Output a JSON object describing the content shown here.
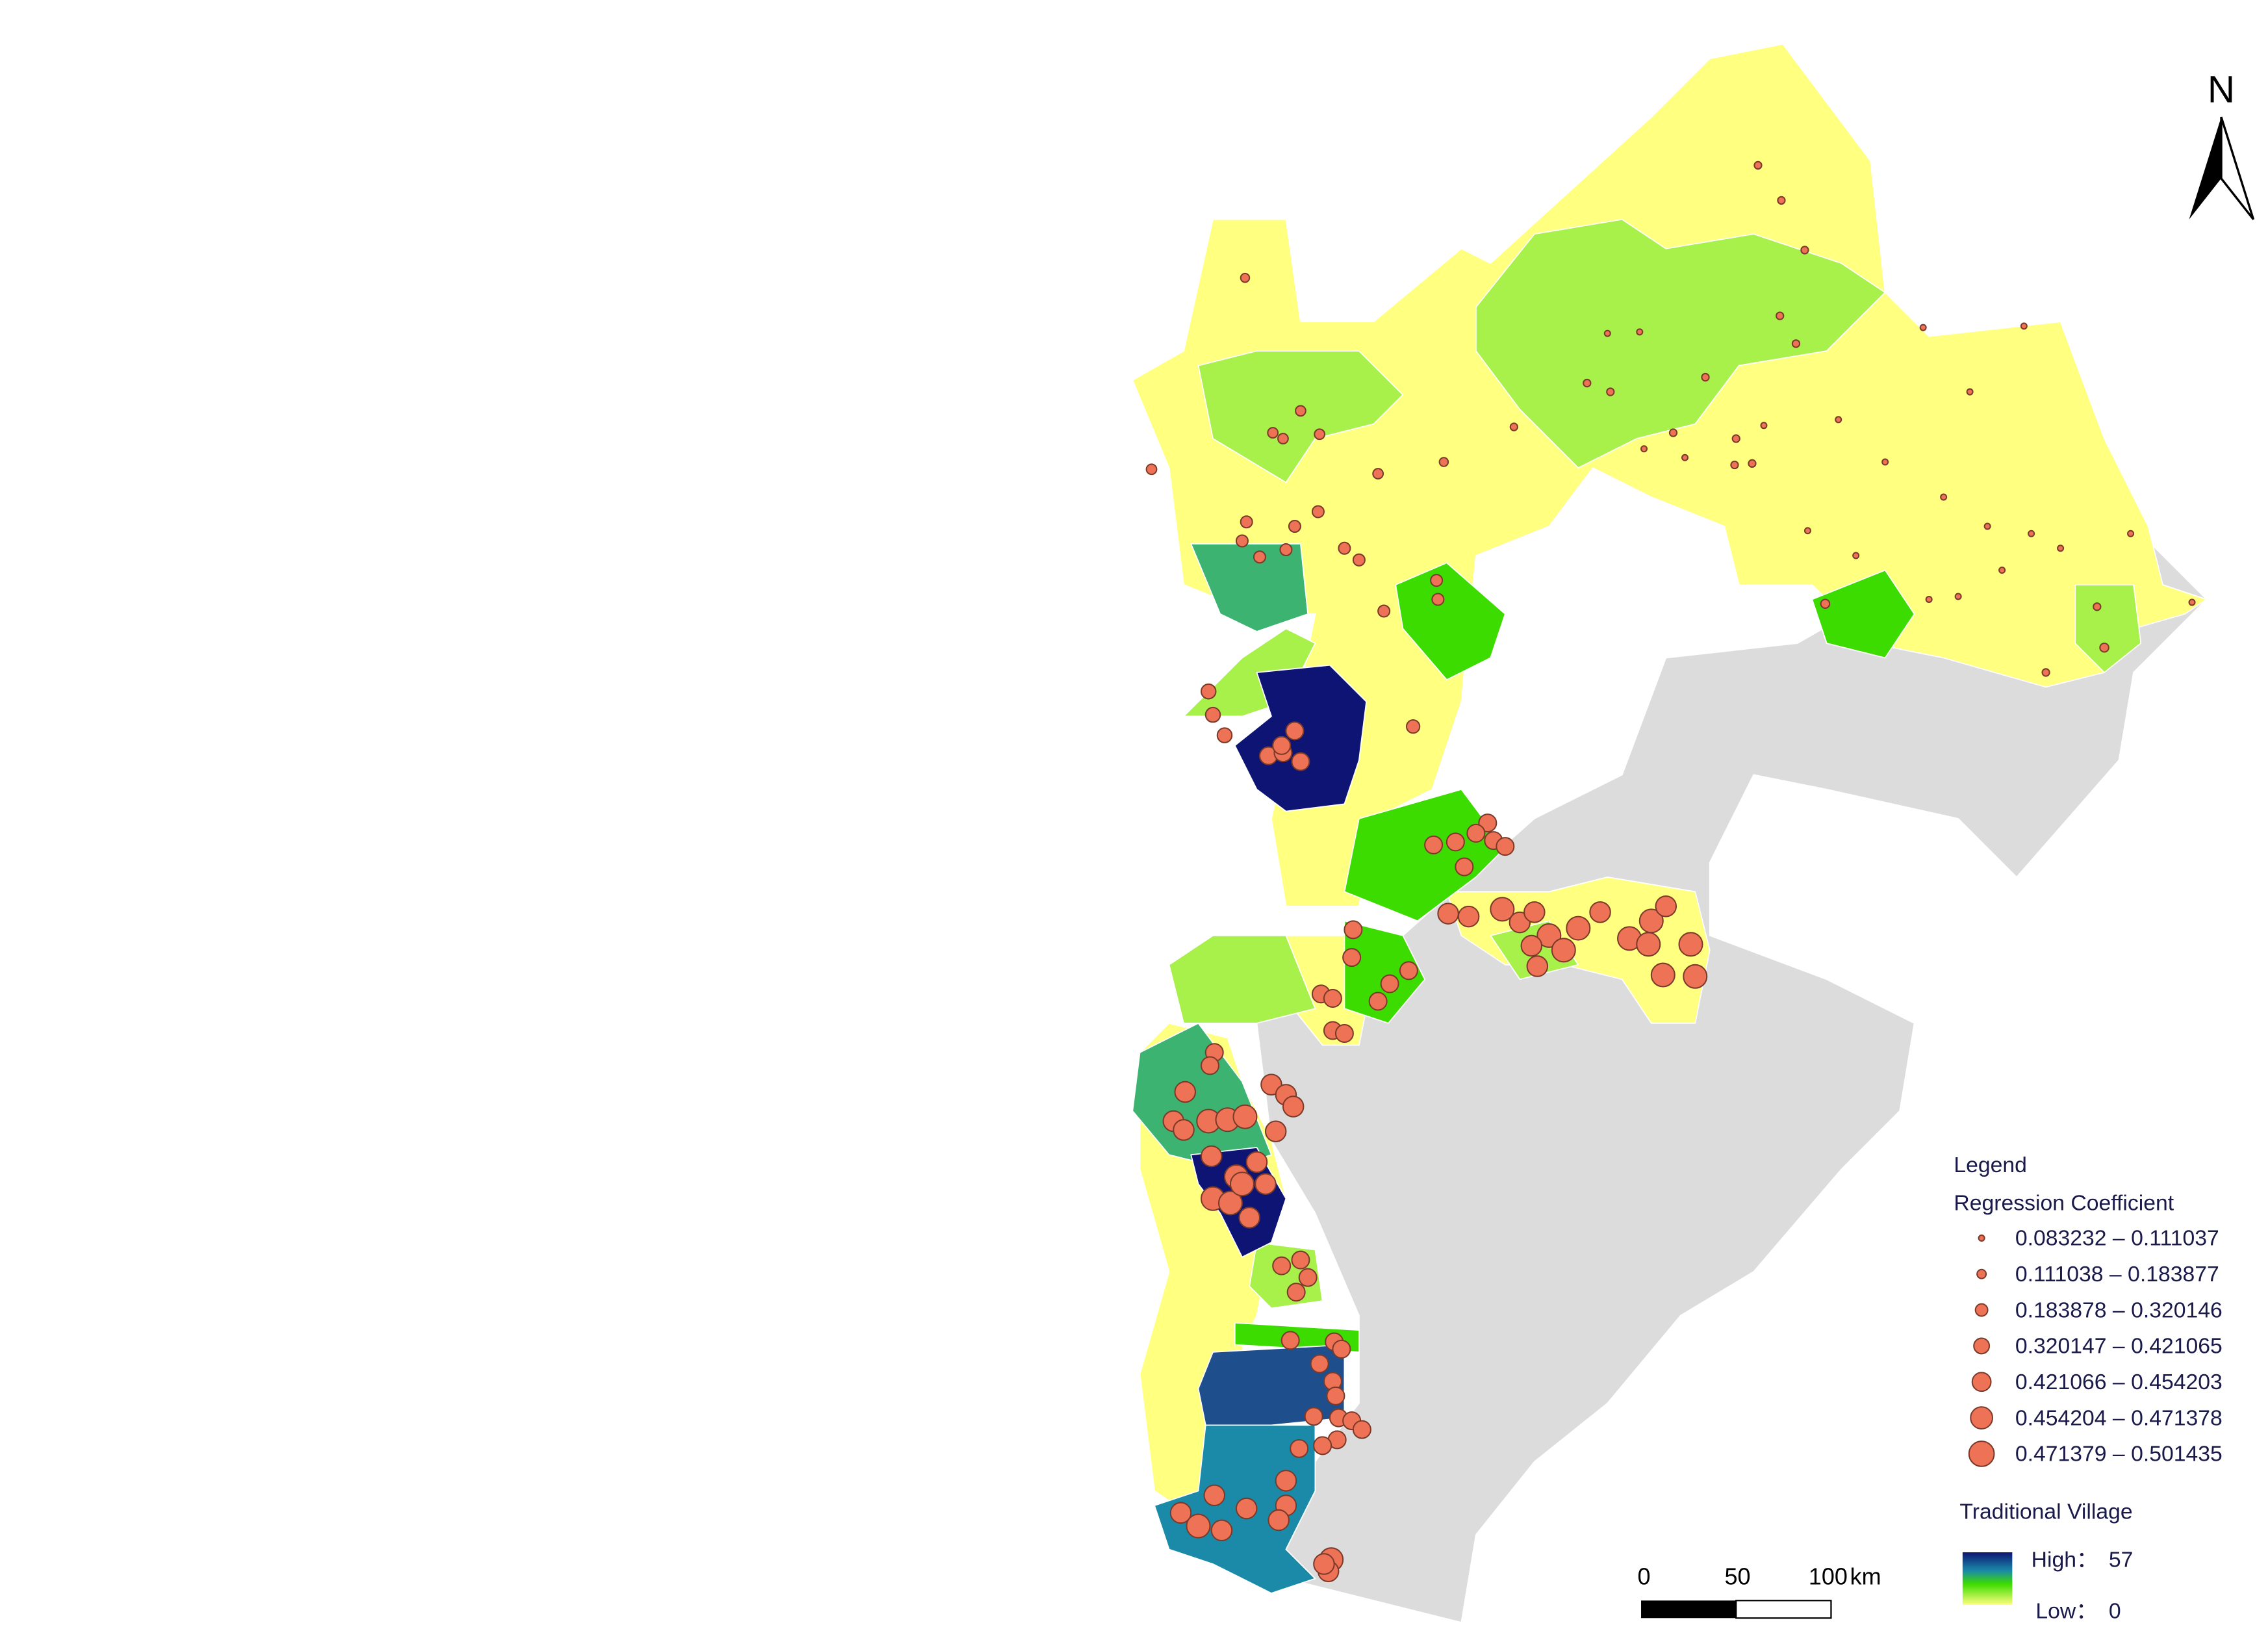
{
  "north": "N",
  "legend": {
    "title": "Legend",
    "coefficient_title": "Regression Coefficient",
    "classes": [
      "0.083232 – 0.111037",
      "0.111038 – 0.183877",
      "0.183878 – 0.320146",
      "0.320147 – 0.421065",
      "0.421066 – 0.454203",
      "0.454204 – 0.471378",
      "0.471379 – 0.501435"
    ],
    "village_title": "Traditional Village",
    "high_label": "High：",
    "high_value": "57",
    "low_label": "Low：",
    "low_value": "0"
  },
  "scale_bar": {
    "labels": [
      "0",
      "50",
      "100"
    ],
    "unit": "km"
  }
}
